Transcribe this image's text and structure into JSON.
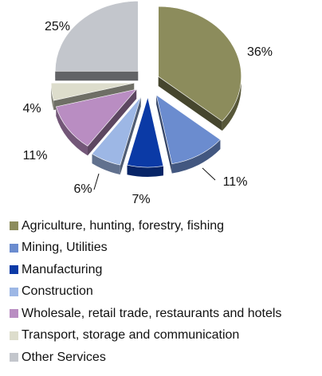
{
  "chart_data": {
    "type": "pie",
    "title": "",
    "categories": [
      "Agriculture, hunting, forestry, fishing",
      "Mining, Utilities",
      "Manufacturing",
      "Construction",
      "Wholesale, retail trade, restaurants and hotels",
      "Transport, storage and communication",
      "Other Services"
    ],
    "values": [
      36,
      11,
      7,
      6,
      11,
      4,
      25
    ],
    "data_labels": [
      "36%",
      "11%",
      "7%",
      "6%",
      "11%",
      "4%",
      "25%"
    ],
    "colors": [
      "#8c8c5c",
      "#6b8ccf",
      "#0b3aa6",
      "#9db7e5",
      "#b98dc2",
      "#ddddcc",
      "#c3c6cc"
    ],
    "legend_position": "bottom",
    "exploded": true,
    "style": "3d"
  }
}
